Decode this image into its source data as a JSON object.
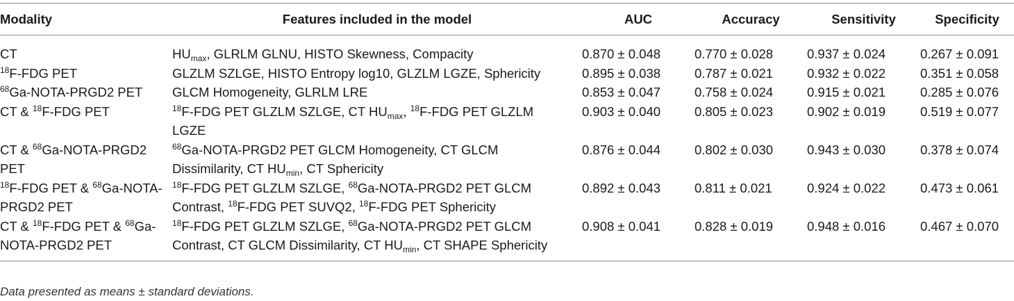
{
  "table": {
    "columns": [
      "Modality",
      "Features included in the model",
      "AUC",
      "Accuracy",
      "Sensitivity",
      "Specificity"
    ],
    "rows": [
      [
        [
          "CT"
        ],
        [
          "HU",
          {
            "sub": "max"
          },
          ", GLRLM GLNU, HISTO Skewness, Compacity"
        ],
        [
          "0.870 ± 0.048"
        ],
        [
          "0.770 ± 0.028"
        ],
        [
          "0.937 ± 0.024"
        ],
        [
          "0.267 ± 0.091"
        ]
      ],
      [
        [
          {
            "sup": "18"
          },
          "F-FDG PET"
        ],
        [
          "GLZLM SZLGE, HISTO Entropy log10, GLZLM LGZE, Sphericity"
        ],
        [
          "0.895 ± 0.038"
        ],
        [
          "0.787 ± 0.021"
        ],
        [
          "0.932 ± 0.022"
        ],
        [
          "0.351 ± 0.058"
        ]
      ],
      [
        [
          {
            "sup": "68"
          },
          "Ga-NOTA-PRGD2 PET"
        ],
        [
          "GLCM Homogeneity, GLRLM LRE"
        ],
        [
          "0.853 ± 0.047"
        ],
        [
          "0.758 ± 0.024"
        ],
        [
          "0.915 ± 0.021"
        ],
        [
          "0.285 ± 0.076"
        ]
      ],
      [
        [
          "CT & ",
          {
            "sup": "18"
          },
          "F-FDG PET"
        ],
        [
          {
            "sup": "18"
          },
          "F-FDG PET GLZLM SZLGE, CT HU",
          {
            "sub": "max"
          },
          ", ",
          {
            "sup": "18"
          },
          "F-FDG PET GLZLM LGZE"
        ],
        [
          "0.903 ± 0.040"
        ],
        [
          "0.805 ± 0.023"
        ],
        [
          "0.902 ± 0.019"
        ],
        [
          "0.519 ± 0.077"
        ]
      ],
      [
        [
          "CT & ",
          {
            "sup": "68"
          },
          "Ga-NOTA-PRGD2 PET"
        ],
        [
          {
            "sup": "68"
          },
          "Ga-NOTA-PRGD2 PET GLCM Homogeneity, CT GLCM Dissimilarity, CT HU",
          {
            "sub": "min"
          },
          ", CT Sphericity"
        ],
        [
          "0.876 ± 0.044"
        ],
        [
          "0.802 ± 0.030"
        ],
        [
          "0.943 ± 0.030"
        ],
        [
          "0.378 ± 0.074"
        ]
      ],
      [
        [
          {
            "sup": "18"
          },
          "F-FDG PET & ",
          {
            "sup": "68"
          },
          "Ga-NOTA-PRGD2 PET"
        ],
        [
          {
            "sup": "18"
          },
          "F-FDG PET GLZLM SZLGE, ",
          {
            "sup": "68"
          },
          "Ga-NOTA-PRGD2 PET GLCM Contrast, ",
          {
            "sup": "18"
          },
          "F-FDG PET SUVQ2, ",
          {
            "sup": "18"
          },
          "F-FDG PET Sphericity"
        ],
        [
          "0.892 ± 0.043"
        ],
        [
          "0.811 ± 0.021"
        ],
        [
          "0.924 ± 0.022"
        ],
        [
          "0.473 ± 0.061"
        ]
      ],
      [
        [
          "CT & ",
          {
            "sup": "18"
          },
          "F-FDG PET & ",
          {
            "sup": "68"
          },
          "Ga-NOTA-PRGD2 PET"
        ],
        [
          {
            "sup": "18"
          },
          "F-FDG PET GLZLM SZLGE, ",
          {
            "sup": "68"
          },
          "Ga-NOTA-PRGD2 PET GLCM Contrast, CT GLCM Dissimilarity, CT HU",
          {
            "sub": "min"
          },
          ", CT SHAPE Sphericity"
        ],
        [
          "0.908 ± 0.041"
        ],
        [
          "0.828 ± 0.019"
        ],
        [
          "0.948 ± 0.016"
        ],
        [
          "0.467 ± 0.070"
        ]
      ]
    ],
    "footnote": "Data presented as means ± standard deviations."
  }
}
